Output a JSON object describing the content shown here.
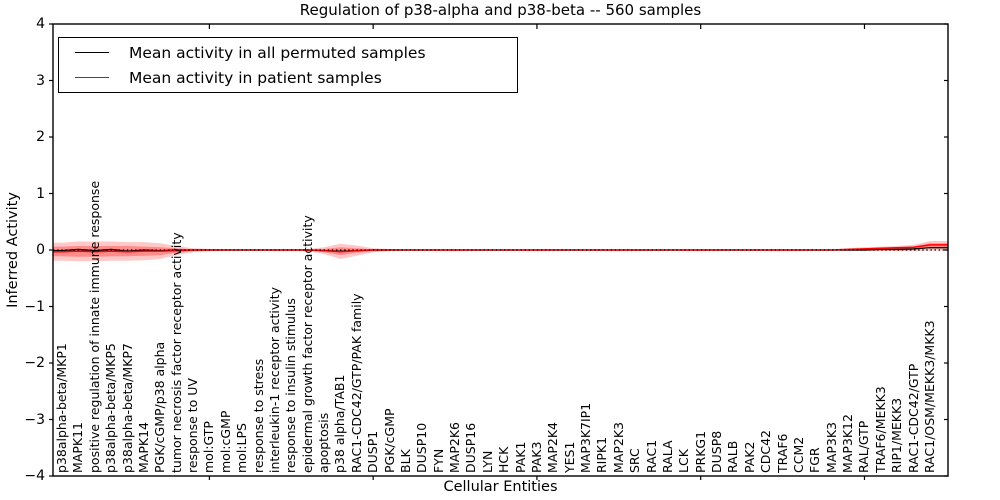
{
  "figure": {
    "title": "Regulation of p38-alpha and p38-beta -- 560 samples",
    "xlabel": "Cellular Entities",
    "ylabel": "Inferred Activity"
  },
  "legend": {
    "items": [
      {
        "label": "Mean activity in all permuted samples",
        "color": "#000000"
      },
      {
        "label": "Mean activity in patient samples",
        "color": "#ff0000"
      }
    ]
  },
  "colors": {
    "permuted_line": "#000000",
    "patient_line": "#ff0000",
    "confidence_band": "#ff0000",
    "axis": "#000000"
  },
  "chart_data": {
    "type": "line",
    "title": "Regulation of p38-alpha and p38-beta -- 560 samples",
    "xlabel": "Cellular Entities",
    "ylabel": "Inferred Activity",
    "ylim": [
      -4,
      4
    ],
    "ytick_labels": [
      "4",
      "3",
      "2",
      "1",
      "0",
      "−1",
      "−2",
      "−3",
      "−4"
    ],
    "ytick_values": [
      4,
      3,
      2,
      1,
      0,
      -1,
      -2,
      -3,
      -4
    ],
    "grid": false,
    "legend_position": "upper left",
    "zero_line": 0,
    "x_major_tick_indices": [
      9,
      19,
      29,
      39,
      49
    ],
    "categories": [
      "p38alpha-beta/MKP1",
      "MAPK11",
      "positive regulation of innate immune response",
      "p38alpha-beta/MKP5",
      "p38alpha-beta/MKP7",
      "MAPK14",
      "PGK/cGMP/p38 alpha",
      "tumor necrosis factor receptor activity",
      "response to UV",
      "mol:GTP",
      "mol:cGMP",
      "mol:LPS",
      "response to stress",
      "interleukin-1 receptor activity",
      "response to insulin stimulus",
      "epidermal growth factor receptor activity",
      "apoptosis",
      "p38 alpha/TAB1",
      "RAC1-CDC42/GTP/PAK family",
      "DUSP1",
      "PGK/cGMP",
      "BLK",
      "DUSP10",
      "FYN",
      "MAP2K6",
      "DUSP16",
      "LYN",
      "HCK",
      "PAK1",
      "PAK3",
      "MAP2K4",
      "YES1",
      "MAP3K7IP1",
      "RIPK1",
      "MAP2K3",
      "SRC",
      "RAC1",
      "RALA",
      "LCK",
      "PRKG1",
      "DUSP8",
      "RALB",
      "PAK2",
      "CDC42",
      "TRAF6",
      "CCM2",
      "FGR",
      "MAP3K3",
      "MAP3K12",
      "RAL/GTP",
      "TRAF6/MEKK3",
      "RIP1/MEKK3",
      "RAC1-CDC42/GTP",
      "RAC1/OSM/MEKK3/MKK3"
    ],
    "series": [
      {
        "name": "Mean activity in all permuted samples",
        "color": "#000000",
        "values": [
          -0.01,
          0.01,
          -0.01,
          0.01,
          -0.02,
          0.0,
          -0.01,
          0.0,
          0.0,
          0.0,
          0.0,
          0.0,
          0.0,
          0.0,
          0.0,
          0.0,
          -0.01,
          -0.02,
          -0.01,
          0.0,
          0.0,
          0.0,
          0.0,
          0.0,
          0.0,
          0.0,
          0.0,
          0.0,
          0.0,
          0.0,
          0.0,
          0.0,
          0.0,
          0.0,
          0.0,
          0.0,
          0.0,
          0.0,
          0.0,
          0.0,
          0.0,
          0.0,
          0.0,
          0.0,
          0.0,
          0.0,
          0.0,
          0.0,
          0.0,
          0.0,
          0.01,
          0.01,
          0.02,
          0.04
        ]
      },
      {
        "name": "Mean activity in patient samples",
        "color": "#ff0000",
        "values": [
          -0.03,
          -0.02,
          -0.03,
          -0.02,
          -0.03,
          -0.02,
          -0.02,
          -0.01,
          0.0,
          0.0,
          0.0,
          0.0,
          0.0,
          0.0,
          0.0,
          0.0,
          -0.01,
          -0.03,
          -0.01,
          0.0,
          0.0,
          0.0,
          0.0,
          0.0,
          0.0,
          0.0,
          0.0,
          0.0,
          0.0,
          0.0,
          0.0,
          0.0,
          0.0,
          0.0,
          0.0,
          0.0,
          0.0,
          0.0,
          0.0,
          0.0,
          0.0,
          0.0,
          0.0,
          0.0,
          0.0,
          0.0,
          0.0,
          0.0,
          0.01,
          0.02,
          0.03,
          0.04,
          0.05,
          0.09
        ]
      }
    ],
    "bands": [
      {
        "name": "patient-confidence-outer",
        "color": "#ff0000",
        "opacity": 0.22,
        "high": [
          0.13,
          0.15,
          0.15,
          0.15,
          0.14,
          0.14,
          0.12,
          0.07,
          0.03,
          0.02,
          0.015,
          0.015,
          0.015,
          0.015,
          0.015,
          0.02,
          0.05,
          0.11,
          0.08,
          0.03,
          0.02,
          0.015,
          0.015,
          0.015,
          0.015,
          0.015,
          0.015,
          0.015,
          0.015,
          0.015,
          0.015,
          0.015,
          0.015,
          0.015,
          0.015,
          0.015,
          0.015,
          0.015,
          0.015,
          0.015,
          0.015,
          0.015,
          0.015,
          0.015,
          0.015,
          0.015,
          0.015,
          0.015,
          0.03,
          0.05,
          0.06,
          0.07,
          0.09,
          0.16
        ],
        "low": [
          -0.19,
          -0.2,
          -0.2,
          -0.19,
          -0.19,
          -0.18,
          -0.16,
          -0.09,
          -0.04,
          -0.02,
          -0.015,
          -0.015,
          -0.015,
          -0.015,
          -0.015,
          -0.02,
          -0.07,
          -0.16,
          -0.1,
          -0.04,
          -0.02,
          -0.015,
          -0.015,
          -0.015,
          -0.015,
          -0.015,
          -0.015,
          -0.015,
          -0.015,
          -0.015,
          -0.015,
          -0.015,
          -0.015,
          -0.015,
          -0.015,
          -0.015,
          -0.015,
          -0.015,
          -0.015,
          -0.015,
          -0.015,
          -0.015,
          -0.015,
          -0.015,
          -0.015,
          -0.015,
          -0.015,
          -0.015,
          -0.02,
          -0.02,
          -0.02,
          -0.02,
          -0.02,
          -0.01
        ]
      },
      {
        "name": "patient-confidence-inner",
        "color": "#ff0000",
        "opacity": 0.3,
        "high": [
          0.06,
          0.07,
          0.07,
          0.07,
          0.07,
          0.06,
          0.05,
          0.03,
          0.015,
          0.01,
          0.008,
          0.008,
          0.008,
          0.008,
          0.008,
          0.01,
          0.02,
          0.05,
          0.03,
          0.015,
          0.01,
          0.008,
          0.008,
          0.008,
          0.008,
          0.008,
          0.008,
          0.008,
          0.008,
          0.008,
          0.008,
          0.008,
          0.008,
          0.008,
          0.008,
          0.008,
          0.008,
          0.008,
          0.008,
          0.008,
          0.008,
          0.008,
          0.008,
          0.008,
          0.008,
          0.008,
          0.008,
          0.008,
          0.015,
          0.03,
          0.04,
          0.05,
          0.06,
          0.12
        ],
        "low": [
          -0.11,
          -0.12,
          -0.12,
          -0.11,
          -0.11,
          -0.1,
          -0.09,
          -0.05,
          -0.02,
          -0.01,
          -0.008,
          -0.008,
          -0.008,
          -0.008,
          -0.008,
          -0.01,
          -0.04,
          -0.09,
          -0.05,
          -0.02,
          -0.01,
          -0.008,
          -0.008,
          -0.008,
          -0.008,
          -0.008,
          -0.008,
          -0.008,
          -0.008,
          -0.008,
          -0.008,
          -0.008,
          -0.008,
          -0.008,
          -0.008,
          -0.008,
          -0.008,
          -0.008,
          -0.008,
          -0.008,
          -0.008,
          -0.008,
          -0.008,
          -0.008,
          -0.008,
          -0.008,
          -0.008,
          -0.008,
          -0.01,
          -0.01,
          -0.01,
          -0.01,
          0.0,
          0.03
        ]
      }
    ]
  }
}
